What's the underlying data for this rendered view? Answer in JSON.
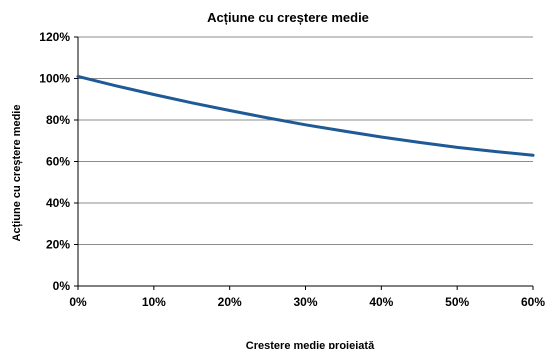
{
  "chart_data": {
    "type": "line",
    "title": "Acțiune cu creștere medie",
    "xlabel": "Crestere medie proiejată",
    "ylabel": "Acțiune cu creștere medie",
    "xlim": [
      0,
      0.6
    ],
    "ylim": [
      0,
      1.2
    ],
    "x_ticks": [
      "0%",
      "10%",
      "20%",
      "30%",
      "40%",
      "50%",
      "60%"
    ],
    "y_ticks": [
      "0%",
      "20%",
      "40%",
      "60%",
      "80%",
      "100%",
      "120%"
    ],
    "grid": "horizontal",
    "series": [
      {
        "color": "#1f5a96",
        "x": [
          0,
          0.05,
          0.1,
          0.15,
          0.2,
          0.25,
          0.3,
          0.35,
          0.4,
          0.45,
          0.5,
          0.55,
          0.6
        ],
        "y": [
          1.01,
          0.965,
          0.923,
          0.883,
          0.846,
          0.81,
          0.777,
          0.747,
          0.718,
          0.692,
          0.668,
          0.648,
          0.63
        ]
      }
    ]
  }
}
